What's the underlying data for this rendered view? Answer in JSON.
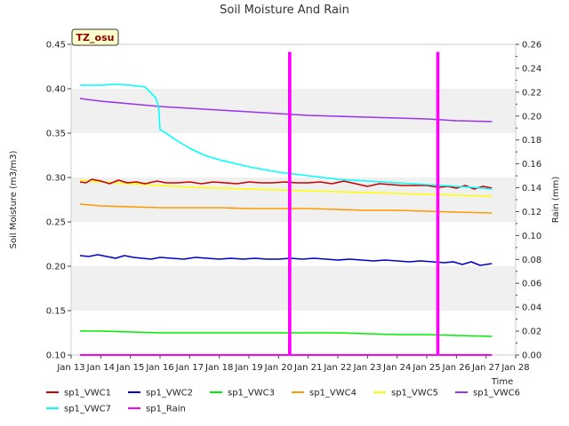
{
  "chart_data": {
    "type": "line",
    "title": "Soil Moisture And Rain",
    "site_badge": "TZ_osu",
    "xlabel": "Time",
    "ylabel": "Soil Moisture (m3/m3)",
    "y2label": "Rain (mm)",
    "x_tick_labels": [
      "Jan 13",
      "Jan 14",
      "Jan 15",
      "Jan 16",
      "Jan 17",
      "Jan 18",
      "Jan 19",
      "Jan 20",
      "Jan 21",
      "Jan 22",
      "Jan 23",
      "Jan 24",
      "Jan 25",
      "Jan 26",
      "Jan 27",
      "Jan 28"
    ],
    "xlim": [
      13,
      28
    ],
    "ylim": [
      0.1,
      0.45
    ],
    "yticks": [
      "0.10",
      "0.15",
      "0.20",
      "0.25",
      "0.30",
      "0.35",
      "0.40",
      "0.45"
    ],
    "y2lim": [
      0.0,
      0.26
    ],
    "y2ticks": [
      "0.00",
      "0.02",
      "0.04",
      "0.06",
      "0.08",
      "0.10",
      "0.12",
      "0.14",
      "0.16",
      "0.18",
      "0.20",
      "0.22",
      "0.24",
      "0.26"
    ],
    "grid": "horizontal bands",
    "legend_placement": "bottom",
    "series": [
      {
        "name": "sp1_VWC1",
        "color": "#cc0000",
        "axis": "left",
        "x": [
          13.3,
          13.5,
          13.7,
          14.0,
          14.3,
          14.6,
          14.9,
          15.2,
          15.5,
          15.9,
          16.2,
          16.6,
          17.0,
          17.4,
          17.8,
          18.2,
          18.6,
          19.0,
          19.4,
          19.8,
          20.2,
          20.6,
          21.0,
          21.4,
          21.8,
          22.2,
          22.6,
          23.0,
          23.4,
          23.8,
          24.2,
          24.6,
          25.0,
          25.4,
          25.7,
          26.0,
          26.3,
          26.6,
          26.9,
          27.2
        ],
        "y": [
          0.295,
          0.294,
          0.298,
          0.296,
          0.293,
          0.297,
          0.294,
          0.295,
          0.293,
          0.296,
          0.294,
          0.294,
          0.295,
          0.293,
          0.295,
          0.294,
          0.293,
          0.295,
          0.294,
          0.294,
          0.295,
          0.294,
          0.294,
          0.295,
          0.293,
          0.296,
          0.293,
          0.29,
          0.293,
          0.292,
          0.291,
          0.291,
          0.291,
          0.289,
          0.29,
          0.288,
          0.291,
          0.287,
          0.29,
          0.288
        ]
      },
      {
        "name": "sp1_VWC2",
        "color": "#0000cc",
        "axis": "left",
        "x": [
          13.3,
          13.6,
          13.9,
          14.2,
          14.5,
          14.8,
          15.1,
          15.4,
          15.7,
          16.0,
          16.4,
          16.8,
          17.2,
          17.6,
          18.0,
          18.4,
          18.8,
          19.2,
          19.6,
          20.0,
          20.4,
          20.8,
          21.2,
          21.6,
          22.0,
          22.4,
          22.8,
          23.2,
          23.6,
          24.0,
          24.4,
          24.8,
          25.2,
          25.6,
          25.9,
          26.2,
          26.5,
          26.8,
          27.2
        ],
        "y": [
          0.212,
          0.211,
          0.213,
          0.211,
          0.209,
          0.212,
          0.21,
          0.209,
          0.208,
          0.21,
          0.209,
          0.208,
          0.21,
          0.209,
          0.208,
          0.209,
          0.208,
          0.209,
          0.208,
          0.208,
          0.209,
          0.208,
          0.209,
          0.208,
          0.207,
          0.208,
          0.207,
          0.206,
          0.207,
          0.206,
          0.205,
          0.206,
          0.205,
          0.204,
          0.205,
          0.202,
          0.205,
          0.201,
          0.203
        ]
      },
      {
        "name": "sp1_VWC3",
        "color": "#00ee00",
        "axis": "left",
        "x": [
          13.3,
          14.0,
          15.0,
          16.0,
          17.0,
          18.0,
          19.0,
          20.0,
          21.0,
          22.0,
          23.0,
          24.0,
          25.0,
          26.0,
          27.2
        ],
        "y": [
          0.127,
          0.127,
          0.126,
          0.125,
          0.125,
          0.125,
          0.125,
          0.125,
          0.125,
          0.125,
          0.124,
          0.123,
          0.123,
          0.122,
          0.121
        ]
      },
      {
        "name": "sp1_VWC4",
        "color": "#ff9900",
        "axis": "left",
        "x": [
          13.3,
          14.0,
          15.0,
          16.0,
          17.0,
          18.0,
          19.0,
          20.0,
          21.0,
          22.0,
          23.0,
          24.0,
          25.0,
          26.0,
          27.2
        ],
        "y": [
          0.27,
          0.268,
          0.267,
          0.266,
          0.266,
          0.266,
          0.265,
          0.265,
          0.265,
          0.264,
          0.263,
          0.263,
          0.262,
          0.261,
          0.26
        ]
      },
      {
        "name": "sp1_VWC5",
        "color": "#ffff00",
        "axis": "left",
        "x": [
          13.3,
          14.0,
          15.0,
          16.0,
          17.0,
          18.0,
          19.0,
          20.0,
          21.0,
          22.0,
          23.0,
          24.0,
          25.0,
          26.0,
          27.2
        ],
        "y": [
          0.297,
          0.295,
          0.293,
          0.291,
          0.289,
          0.288,
          0.287,
          0.286,
          0.285,
          0.284,
          0.283,
          0.282,
          0.281,
          0.28,
          0.279
        ]
      },
      {
        "name": "sp1_VWC6",
        "color": "#9933ee",
        "axis": "left",
        "x": [
          13.3,
          14.0,
          15.0,
          16.0,
          17.0,
          18.0,
          19.0,
          20.0,
          21.0,
          22.0,
          23.0,
          24.0,
          25.0,
          26.0,
          27.2
        ],
        "y": [
          0.389,
          0.386,
          0.383,
          0.38,
          0.378,
          0.376,
          0.374,
          0.372,
          0.37,
          0.369,
          0.368,
          0.367,
          0.366,
          0.364,
          0.363
        ]
      },
      {
        "name": "sp1_VWC7",
        "color": "#00ffff",
        "axis": "left",
        "x": [
          13.3,
          14.0,
          14.5,
          15.0,
          15.5,
          15.7,
          15.85,
          15.95,
          16.0,
          16.2,
          16.5,
          17.0,
          17.5,
          18.0,
          18.5,
          19.0,
          19.5,
          20.0,
          20.5,
          21.0,
          21.5,
          22.0,
          22.5,
          23.0,
          23.5,
          24.0,
          24.5,
          25.0,
          25.5,
          26.0,
          26.5,
          27.2
        ],
        "y": [
          0.404,
          0.404,
          0.405,
          0.404,
          0.402,
          0.395,
          0.39,
          0.38,
          0.354,
          0.35,
          0.343,
          0.333,
          0.325,
          0.32,
          0.316,
          0.312,
          0.309,
          0.306,
          0.304,
          0.302,
          0.3,
          0.298,
          0.297,
          0.296,
          0.295,
          0.294,
          0.293,
          0.292,
          0.291,
          0.29,
          0.289,
          0.287
        ]
      },
      {
        "name": "sp1_Rain",
        "color": "#ff00ff",
        "axis": "right",
        "x": [
          13.3,
          20.35,
          20.35,
          20.4,
          20.4,
          25.35,
          25.35,
          25.4,
          25.4,
          27.2
        ],
        "y": [
          0.0,
          0.0,
          0.253,
          0.253,
          0.0,
          0.0,
          0.253,
          0.253,
          0.0,
          0.0
        ]
      }
    ]
  }
}
